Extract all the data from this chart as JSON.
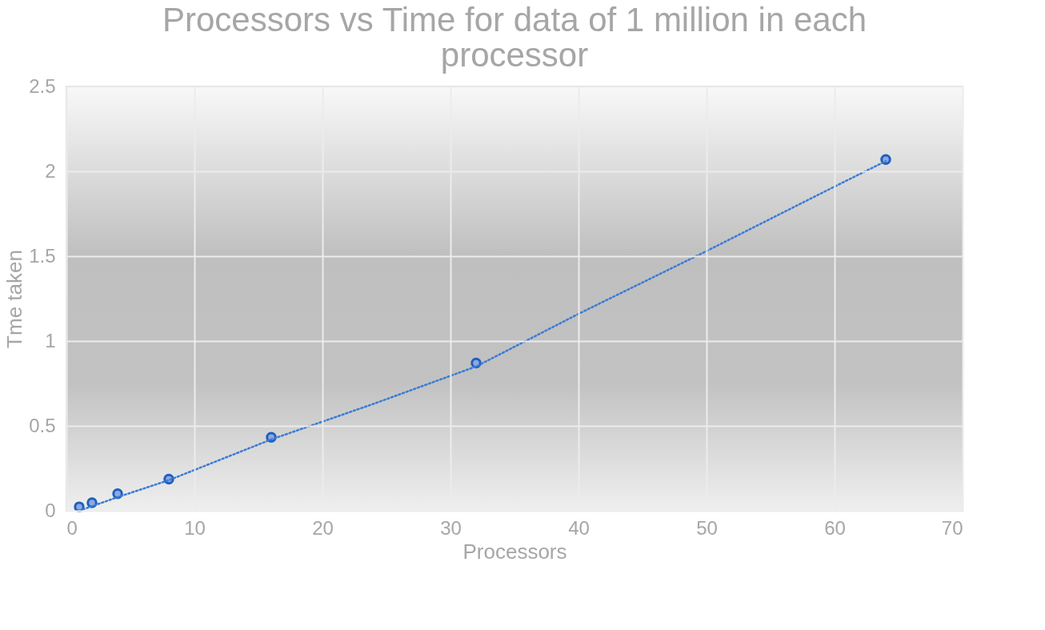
{
  "chart_data": {
    "type": "scatter",
    "title": "Processors vs Time for data of 1 million in each processor",
    "xlabel": "Processors",
    "ylabel": "Tme taken",
    "series": [
      {
        "color": "#1f5fbf",
        "marker": "circle",
        "x": [
          1,
          2,
          4,
          8,
          16,
          32,
          64
        ],
        "values": [
          0.023,
          0.047,
          0.1,
          0.186,
          0.433,
          0.87,
          2.07
        ]
      },
      {
        "type": "line",
        "color": "#3a7bd5",
        "marker": "none",
        "line_style": "dotted",
        "x": [
          1,
          4,
          8,
          16,
          24,
          32,
          40,
          50,
          60,
          64
        ],
        "values": [
          0.0,
          0.08,
          0.18,
          0.42,
          0.63,
          0.85,
          1.16,
          1.53,
          1.91,
          2.06
        ]
      }
    ],
    "xlim": [
      0,
      70
    ],
    "xticks": [
      0,
      10,
      20,
      30,
      40,
      50,
      60,
      70
    ],
    "ylim": [
      0,
      2.5
    ],
    "yticks": [
      0,
      0.5,
      1,
      1.5,
      2,
      2.5
    ],
    "grid": true
  }
}
